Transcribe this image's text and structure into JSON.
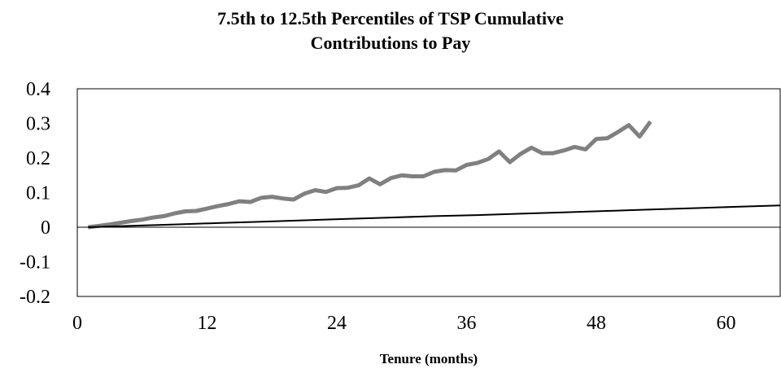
{
  "chart_data": {
    "type": "line",
    "title": [
      "7.5th to 12.5th Percentiles of TSP Cumulative",
      "Contributions to Pay"
    ],
    "x_label": "Tenure (months)",
    "xlim": [
      0,
      65
    ],
    "xticks": [
      0,
      12,
      24,
      36,
      48,
      60
    ],
    "ylim": [
      -0.2,
      0.4
    ],
    "yticks": [
      -0.2,
      -0.1,
      0,
      0.1,
      0.2,
      0.3,
      0.4
    ],
    "series": [
      {
        "color": "#808080",
        "width": 5,
        "x": [
          1,
          2,
          3,
          4,
          5,
          6,
          7,
          8,
          9,
          10,
          11,
          12,
          13,
          14,
          15,
          16,
          17,
          18,
          19,
          20,
          21,
          22,
          23,
          24,
          25,
          26,
          27,
          28,
          29,
          30,
          31,
          32,
          33,
          34,
          35,
          36,
          37,
          38,
          39,
          40,
          41,
          42,
          43,
          44,
          45,
          46,
          47,
          48,
          49,
          50,
          51,
          52,
          53
        ],
        "values": [
          0,
          0.004,
          0.008,
          0.013,
          0.018,
          0.022,
          0.028,
          0.032,
          0.04,
          0.046,
          0.047,
          0.054,
          0.061,
          0.067,
          0.075,
          0.073,
          0.085,
          0.088,
          0.083,
          0.08,
          0.097,
          0.107,
          0.102,
          0.113,
          0.114,
          0.121,
          0.141,
          0.124,
          0.142,
          0.15,
          0.147,
          0.147,
          0.16,
          0.165,
          0.164,
          0.18,
          0.186,
          0.197,
          0.219,
          0.188,
          0.212,
          0.23,
          0.214,
          0.214,
          0.222,
          0.232,
          0.225,
          0.255,
          0.257,
          0.275,
          0.295,
          0.262,
          0.305
        ]
      },
      {
        "color": "#000000",
        "width": 2,
        "x": [
          1,
          5,
          9,
          13,
          17,
          21,
          25,
          29,
          33,
          37,
          41,
          45,
          49,
          53,
          57,
          61,
          65
        ],
        "values": [
          0,
          0.004,
          0.008,
          0.012,
          0.016,
          0.02,
          0.024,
          0.028,
          0.032,
          0.035,
          0.039,
          0.043,
          0.047,
          0.051,
          0.055,
          0.059,
          0.063
        ]
      }
    ]
  }
}
